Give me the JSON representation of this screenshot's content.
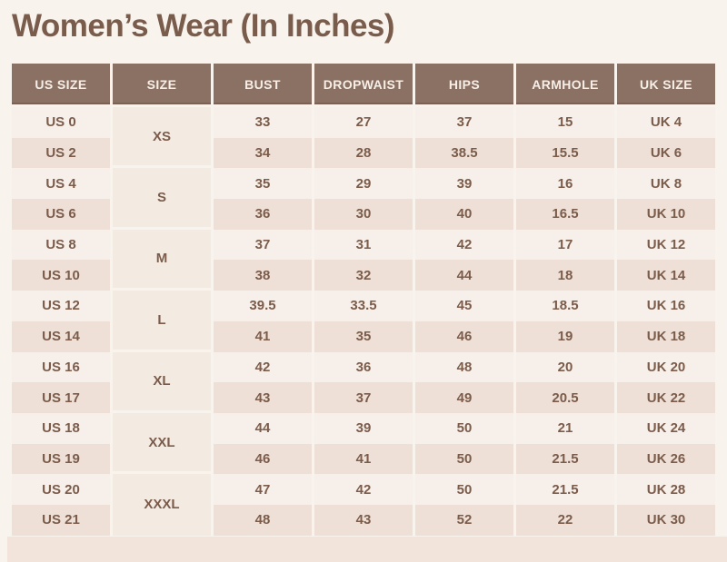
{
  "title": "Women’s Wear (In Inches)",
  "colors": {
    "page_background": "#f8f3ec",
    "header_background": "#8b7164",
    "header_text": "#f6efe7",
    "row_light": "#f7efe9",
    "row_dark": "#eee0d6",
    "size_cell_background": "#f3eae2",
    "cell_text": "#7b5c4b",
    "title_text": "#7a5c4c",
    "bottom_band": "#f2e4db"
  },
  "table": {
    "headers": [
      "US SIZE",
      "SIZE",
      "BUST",
      "DROPWAIST",
      "HIPS",
      "ARMHOLE",
      "UK SIZE"
    ],
    "groups": [
      {
        "size": "XS",
        "rows": [
          {
            "us": "US 0",
            "bust": "33",
            "dropwaist": "27",
            "hips": "37",
            "armhole": "15",
            "uk": "UK 4"
          },
          {
            "us": "US 2",
            "bust": "34",
            "dropwaist": "28",
            "hips": "38.5",
            "armhole": "15.5",
            "uk": "UK 6"
          }
        ]
      },
      {
        "size": "S",
        "rows": [
          {
            "us": "US 4",
            "bust": "35",
            "dropwaist": "29",
            "hips": "39",
            "armhole": "16",
            "uk": "UK 8"
          },
          {
            "us": "US 6",
            "bust": "36",
            "dropwaist": "30",
            "hips": "40",
            "armhole": "16.5",
            "uk": "UK 10"
          }
        ]
      },
      {
        "size": "M",
        "rows": [
          {
            "us": "US 8",
            "bust": "37",
            "dropwaist": "31",
            "hips": "42",
            "armhole": "17",
            "uk": "UK 12"
          },
          {
            "us": "US 10",
            "bust": "38",
            "dropwaist": "32",
            "hips": "44",
            "armhole": "18",
            "uk": "UK 14"
          }
        ]
      },
      {
        "size": "L",
        "rows": [
          {
            "us": "US 12",
            "bust": "39.5",
            "dropwaist": "33.5",
            "hips": "45",
            "armhole": "18.5",
            "uk": "UK 16"
          },
          {
            "us": "US 14",
            "bust": "41",
            "dropwaist": "35",
            "hips": "46",
            "armhole": "19",
            "uk": "UK 18"
          }
        ]
      },
      {
        "size": "XL",
        "rows": [
          {
            "us": "US 16",
            "bust": "42",
            "dropwaist": "36",
            "hips": "48",
            "armhole": "20",
            "uk": "UK 20"
          },
          {
            "us": "US 17",
            "bust": "43",
            "dropwaist": "37",
            "hips": "49",
            "armhole": "20.5",
            "uk": "UK 22"
          }
        ]
      },
      {
        "size": "XXL",
        "rows": [
          {
            "us": "US 18",
            "bust": "44",
            "dropwaist": "39",
            "hips": "50",
            "armhole": "21",
            "uk": "UK 24"
          },
          {
            "us": "US 19",
            "bust": "46",
            "dropwaist": "41",
            "hips": "50",
            "armhole": "21.5",
            "uk": "UK 26"
          }
        ]
      },
      {
        "size": "XXXL",
        "rows": [
          {
            "us": "US 20",
            "bust": "47",
            "dropwaist": "42",
            "hips": "50",
            "armhole": "21.5",
            "uk": "UK 28"
          },
          {
            "us": "US 21",
            "bust": "48",
            "dropwaist": "43",
            "hips": "52",
            "armhole": "22",
            "uk": "UK 30"
          }
        ]
      }
    ]
  },
  "chart_data": {
    "type": "table",
    "title": "Women’s Wear (In Inches)",
    "columns": [
      "US SIZE",
      "SIZE",
      "BUST",
      "DROPWAIST",
      "HIPS",
      "ARMHOLE",
      "UK SIZE"
    ],
    "rows": [
      [
        "US 0",
        "XS",
        "33",
        "27",
        "37",
        "15",
        "UK 4"
      ],
      [
        "US 2",
        "XS",
        "34",
        "28",
        "38.5",
        "15.5",
        "UK 6"
      ],
      [
        "US 4",
        "S",
        "35",
        "29",
        "39",
        "16",
        "UK 8"
      ],
      [
        "US 6",
        "S",
        "36",
        "30",
        "40",
        "16.5",
        "UK 10"
      ],
      [
        "US 8",
        "M",
        "37",
        "31",
        "42",
        "17",
        "UK 12"
      ],
      [
        "US 10",
        "M",
        "38",
        "32",
        "44",
        "18",
        "UK 14"
      ],
      [
        "US 12",
        "L",
        "39.5",
        "33.5",
        "45",
        "18.5",
        "UK 16"
      ],
      [
        "US 14",
        "L",
        "41",
        "35",
        "46",
        "19",
        "UK 18"
      ],
      [
        "US 16",
        "XL",
        "42",
        "36",
        "48",
        "20",
        "UK 20"
      ],
      [
        "US 17",
        "XL",
        "43",
        "37",
        "49",
        "20.5",
        "UK 22"
      ],
      [
        "US 18",
        "XXL",
        "44",
        "39",
        "50",
        "21",
        "UK 24"
      ],
      [
        "US 19",
        "XXL",
        "46",
        "41",
        "50",
        "21.5",
        "UK 26"
      ],
      [
        "US 20",
        "XXXL",
        "47",
        "42",
        "50",
        "21.5",
        "UK 28"
      ],
      [
        "US 21",
        "XXXL",
        "48",
        "43",
        "52",
        "22",
        "UK 30"
      ]
    ]
  }
}
